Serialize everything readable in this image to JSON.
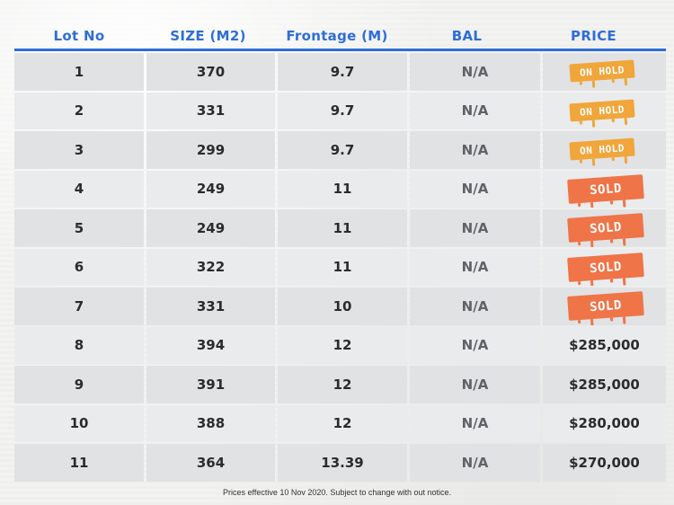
{
  "header": {
    "lot": "Lot No",
    "size": "SIZE (M2)",
    "frontage": "Frontage (M)",
    "bal": "BAL",
    "price": "PRICE"
  },
  "rows": [
    {
      "lot": "1",
      "size": "370",
      "frontage": "9.7",
      "bal": "N/A",
      "price": "",
      "status": "ON HOLD"
    },
    {
      "lot": "2",
      "size": "331",
      "frontage": "9.7",
      "bal": "N/A",
      "price": "",
      "status": "ON HOLD"
    },
    {
      "lot": "3",
      "size": "299",
      "frontage": "9.7",
      "bal": "N/A",
      "price": "",
      "status": "ON HOLD"
    },
    {
      "lot": "4",
      "size": "249",
      "frontage": "11",
      "bal": "N/A",
      "price": "",
      "status": "SOLD"
    },
    {
      "lot": "5",
      "size": "249",
      "frontage": "11",
      "bal": "N/A",
      "price": "",
      "status": "SOLD"
    },
    {
      "lot": "6",
      "size": "322",
      "frontage": "11",
      "bal": "N/A",
      "price": "",
      "status": "SOLD"
    },
    {
      "lot": "7",
      "size": "331",
      "frontage": "10",
      "bal": "N/A",
      "price": "",
      "status": "SOLD"
    },
    {
      "lot": "8",
      "size": "394",
      "frontage": "12",
      "bal": "N/A",
      "price": "$285,000",
      "status": ""
    },
    {
      "lot": "9",
      "size": "391",
      "frontage": "12",
      "bal": "N/A",
      "price": "$285,000",
      "status": ""
    },
    {
      "lot": "10",
      "size": "388",
      "frontage": "12",
      "bal": "N/A",
      "price": "$280,000",
      "status": ""
    },
    {
      "lot": "11",
      "size": "364",
      "frontage": "13.39",
      "bal": "N/A",
      "price": "$270,000",
      "status": ""
    }
  ],
  "footnote": "Prices effective 10 Nov 2020. Subject to change with out notice.",
  "colors": {
    "accent": "#2e6ed6",
    "on_hold": "#f0a63a",
    "sold": "#ef7448"
  }
}
